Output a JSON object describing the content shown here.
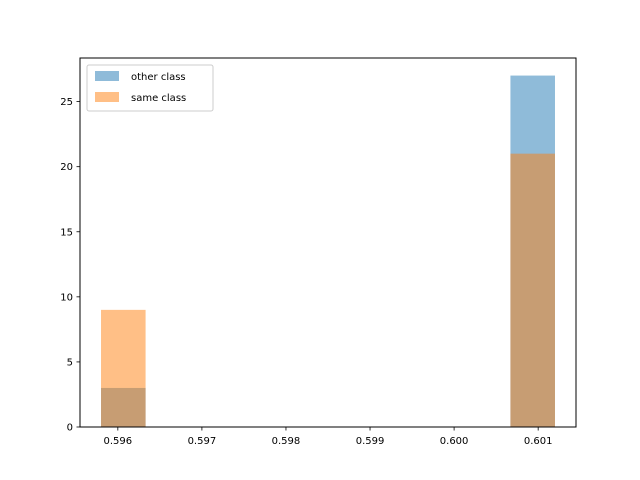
{
  "chart_data": {
    "type": "bar",
    "title": "",
    "xlabel": "",
    "ylabel": "",
    "xlim": [
      0.59555,
      0.60145
    ],
    "ylim": [
      0,
      28.35
    ],
    "xticks": [
      0.596,
      0.597,
      0.598,
      0.599,
      0.6,
      0.601
    ],
    "xtick_labels": [
      "0.596",
      "0.597",
      "0.598",
      "0.599",
      "0.600",
      "0.601"
    ],
    "yticks": [
      0,
      5,
      10,
      15,
      20,
      25
    ],
    "ytick_labels": [
      "0",
      "5",
      "10",
      "15",
      "20",
      "25"
    ],
    "grid": false,
    "legend_position": "top-left",
    "series": [
      {
        "name": "other class",
        "color": "#1f77b4",
        "opacity": 0.5,
        "bins": [
          {
            "x0": 0.5958,
            "x1": 0.59633,
            "value": 3
          },
          {
            "x0": 0.60067,
            "x1": 0.6012,
            "value": 27
          }
        ]
      },
      {
        "name": "same class",
        "color": "#ff7f0e",
        "opacity": 0.5,
        "bins": [
          {
            "x0": 0.5958,
            "x1": 0.59633,
            "value": 9
          },
          {
            "x0": 0.60067,
            "x1": 0.6012,
            "value": 21
          }
        ]
      }
    ]
  }
}
